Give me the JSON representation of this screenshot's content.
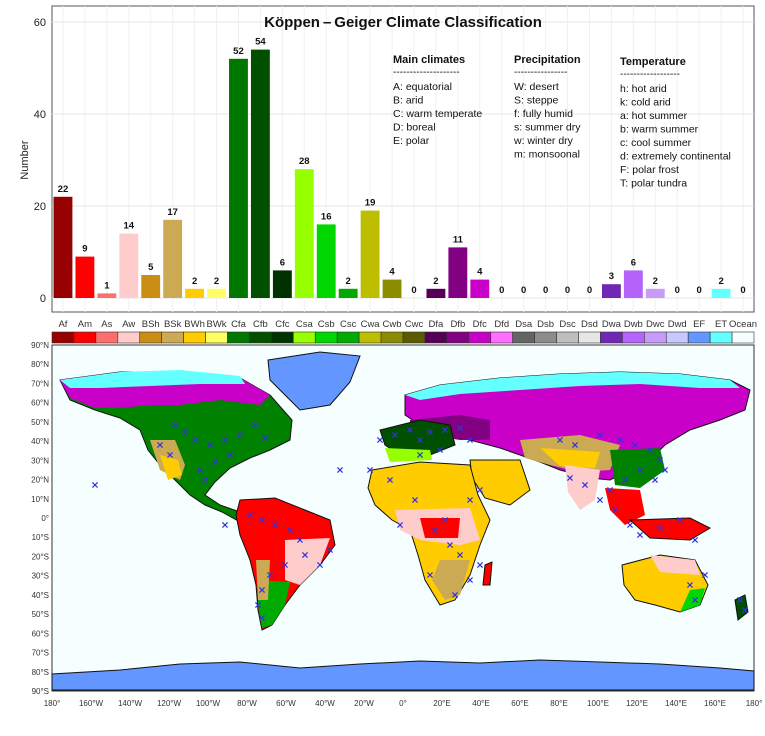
{
  "chart_data": {
    "type": "bar",
    "title": "Köppen – Geiger Climate Classification",
    "ylabel": "Number",
    "ylim": [
      0,
      62
    ],
    "yticks": [
      0,
      20,
      40,
      60
    ],
    "grid": true,
    "categories": [
      "Af",
      "Am",
      "As",
      "Aw",
      "BSh",
      "BSk",
      "BWh",
      "BWk",
      "Cfa",
      "Cfb",
      "Cfc",
      "Csa",
      "Csb",
      "Csc",
      "Cwa",
      "Cwb",
      "Cwc",
      "Dfa",
      "Dfb",
      "Dfc",
      "Dfd",
      "Dsa",
      "Dsb",
      "Dsc",
      "Dsd",
      "Dwa",
      "Dwb",
      "Dwc",
      "Dwd",
      "EF",
      "ET",
      "Ocean"
    ],
    "values": [
      22,
      9,
      1,
      14,
      5,
      17,
      2,
      2,
      52,
      54,
      6,
      28,
      16,
      2,
      19,
      4,
      0,
      2,
      11,
      4,
      0,
      0,
      0,
      0,
      0,
      3,
      6,
      2,
      0,
      0,
      2,
      0
    ],
    "value_labels": [
      "22",
      "9",
      "1",
      "14",
      "5",
      "17",
      "2",
      "2",
      "52",
      "54",
      "6",
      "28",
      "16",
      "2",
      "19",
      "4",
      "0",
      "2",
      "11",
      "4",
      "0",
      "0",
      "0",
      "0",
      "0",
      "3",
      "6",
      "2",
      "0",
      "0",
      "2",
      "0"
    ],
    "colors": [
      "#960000",
      "#ff0000",
      "#ff6e6e",
      "#ffcccc",
      "#cc8d14",
      "#ccaa54",
      "#ffcc00",
      "#ffff64",
      "#007800",
      "#005000",
      "#003200",
      "#96ff00",
      "#00d700",
      "#00aa00",
      "#bebe00",
      "#8c8c00",
      "#5a5a00",
      "#550055",
      "#820082",
      "#c800c8",
      "#ff6eff",
      "#646464",
      "#8c8c8c",
      "#bebebe",
      "#e6e6e6",
      "#6e28b4",
      "#b464fa",
      "#c89bfa",
      "#c8c8ff",
      "#6496ff",
      "#64ffff",
      "#f5ffff"
    ]
  },
  "legend": {
    "main": {
      "title": "Main climates",
      "rule": "--------------------",
      "items": [
        "A: equatorial",
        "B: arid",
        "C: warm temperate",
        "D: boreal",
        "E: polar"
      ]
    },
    "precipitation": {
      "title": "Precipitation",
      "rule": "----------------",
      "items": [
        "W: desert",
        "S: steppe",
        "f: fully humid",
        "s: summer dry",
        "w: winter dry",
        "m: monsoonal"
      ]
    },
    "temperature": {
      "title": "Temperature",
      "rule": "------------------",
      "items": [
        "h: hot arid",
        "k: cold arid",
        "a: hot summer",
        "b: warm summer",
        "c: cool summer",
        "d: extremely continental",
        "F: polar frost",
        "T: polar tundra"
      ]
    }
  },
  "map": {
    "lat_labels": [
      "90°N",
      "80°N",
      "70°N",
      "60°N",
      "50°N",
      "40°N",
      "30°N",
      "20°N",
      "10°N",
      "0°",
      "10°S",
      "20°S",
      "30°S",
      "40°S",
      "50°S",
      "60°S",
      "70°S",
      "80°S",
      "90°S"
    ],
    "lon_labels": [
      "180°",
      "160°W",
      "140°W",
      "120°W",
      "100°W",
      "80°W",
      "60°W",
      "40°W",
      "20°W",
      "0°",
      "20°E",
      "40°E",
      "60°E",
      "80°E",
      "100°E",
      "120°E",
      "140°E",
      "160°E",
      "180°"
    ],
    "ocean_color": "#f5ffff",
    "ice_color": "#6496ff",
    "marker_color": "#3333dd"
  }
}
